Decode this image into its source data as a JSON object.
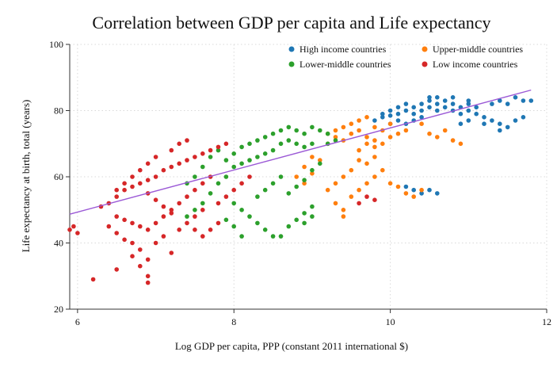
{
  "chart_data": {
    "type": "scatter",
    "title": "Correlation between GDP per capita and Life expectancy",
    "xlabel": "Log GDP per capita, PPP (constant 2011 international $)",
    "ylabel": "Life expectancy at birth, total (years)",
    "xlim": [
      5.9,
      12
    ],
    "ylim": [
      20,
      100
    ],
    "xticks": [
      6,
      8,
      10,
      12
    ],
    "yticks": [
      20,
      40,
      60,
      80,
      100
    ],
    "grid": true,
    "legend_position": "top-right",
    "fit_line": {
      "x": [
        5.9,
        11.8
      ],
      "y": [
        48.7,
        86.2
      ],
      "color": "#9b59d6"
    },
    "series": [
      {
        "name": "High income countries",
        "color": "#1f77b4",
        "points": [
          [
            9.8,
            77
          ],
          [
            9.9,
            78
          ],
          [
            10.0,
            78.5
          ],
          [
            10.0,
            80
          ],
          [
            10.1,
            79
          ],
          [
            10.1,
            81
          ],
          [
            10.2,
            80
          ],
          [
            10.2,
            82
          ],
          [
            10.3,
            79
          ],
          [
            10.3,
            81
          ],
          [
            10.4,
            80
          ],
          [
            10.4,
            82
          ],
          [
            10.5,
            81
          ],
          [
            10.5,
            83
          ],
          [
            10.6,
            80
          ],
          [
            10.6,
            82
          ],
          [
            10.7,
            81
          ],
          [
            10.7,
            83
          ],
          [
            10.8,
            80
          ],
          [
            10.8,
            82
          ],
          [
            10.9,
            81
          ],
          [
            10.9,
            79
          ],
          [
            11.0,
            82
          ],
          [
            11.0,
            80
          ],
          [
            11.1,
            79
          ],
          [
            11.1,
            81
          ],
          [
            11.2,
            78
          ],
          [
            11.3,
            77
          ],
          [
            11.4,
            76
          ],
          [
            11.5,
            82
          ],
          [
            11.6,
            84
          ],
          [
            11.7,
            83
          ],
          [
            11.8,
            83
          ],
          [
            11.7,
            78
          ],
          [
            11.6,
            77
          ],
          [
            11.5,
            75
          ],
          [
            11.4,
            74
          ],
          [
            11.2,
            76
          ],
          [
            11.0,
            77
          ],
          [
            10.9,
            76
          ],
          [
            10.4,
            78
          ],
          [
            10.3,
            77
          ],
          [
            10.2,
            76
          ],
          [
            10.1,
            77
          ],
          [
            10.0,
            76
          ],
          [
            10.2,
            57
          ],
          [
            10.3,
            56
          ],
          [
            10.5,
            56
          ],
          [
            10.6,
            55
          ],
          [
            10.4,
            55
          ],
          [
            9.9,
            79
          ],
          [
            10.5,
            84
          ],
          [
            10.6,
            84
          ],
          [
            10.8,
            84
          ],
          [
            11.0,
            83
          ],
          [
            11.3,
            82
          ],
          [
            11.4,
            83
          ]
        ]
      },
      {
        "name": "Upper-middle countries",
        "color": "#ff7f0e",
        "points": [
          [
            9.2,
            70
          ],
          [
            9.3,
            72
          ],
          [
            9.4,
            71
          ],
          [
            9.5,
            73
          ],
          [
            9.6,
            74
          ],
          [
            9.7,
            72
          ],
          [
            9.8,
            75
          ],
          [
            9.9,
            74
          ],
          [
            10.0,
            76
          ],
          [
            9.5,
            76
          ],
          [
            9.6,
            77
          ],
          [
            9.7,
            78
          ],
          [
            9.4,
            75
          ],
          [
            9.3,
            74
          ],
          [
            9.2,
            73
          ],
          [
            9.6,
            68
          ],
          [
            9.7,
            70
          ],
          [
            9.8,
            71
          ],
          [
            9.9,
            70
          ],
          [
            10.0,
            72
          ],
          [
            9.5,
            62
          ],
          [
            9.4,
            60
          ],
          [
            9.3,
            58
          ],
          [
            9.2,
            56
          ],
          [
            9.3,
            52
          ],
          [
            9.4,
            50
          ],
          [
            9.4,
            48
          ],
          [
            9.5,
            54
          ],
          [
            9.6,
            56
          ],
          [
            9.7,
            58
          ],
          [
            9.8,
            60
          ],
          [
            9.9,
            62
          ],
          [
            10.0,
            58
          ],
          [
            10.1,
            57
          ],
          [
            10.2,
            55
          ],
          [
            10.3,
            54
          ],
          [
            10.4,
            56
          ],
          [
            9.1,
            65
          ],
          [
            9.0,
            66
          ],
          [
            8.9,
            63
          ],
          [
            8.8,
            60
          ],
          [
            9.8,
            69
          ],
          [
            10.5,
            73
          ],
          [
            10.6,
            72
          ],
          [
            10.8,
            71
          ],
          [
            10.9,
            70
          ],
          [
            10.7,
            74
          ],
          [
            10.4,
            76
          ],
          [
            10.2,
            74
          ],
          [
            10.1,
            73
          ],
          [
            9.6,
            65
          ],
          [
            9.7,
            64
          ],
          [
            9.8,
            66
          ],
          [
            9.0,
            61
          ],
          [
            8.9,
            58
          ]
        ]
      },
      {
        "name": "Lower-middle countries",
        "color": "#2ca02c",
        "points": [
          [
            8.2,
            70
          ],
          [
            8.3,
            71
          ],
          [
            8.4,
            72
          ],
          [
            8.5,
            73
          ],
          [
            8.6,
            74
          ],
          [
            8.7,
            75
          ],
          [
            8.8,
            74
          ],
          [
            8.9,
            73
          ],
          [
            9.0,
            75
          ],
          [
            9.1,
            74
          ],
          [
            9.2,
            73
          ],
          [
            8.6,
            70
          ],
          [
            8.7,
            71
          ],
          [
            8.8,
            70
          ],
          [
            8.9,
            69
          ],
          [
            9.0,
            70
          ],
          [
            8.5,
            68
          ],
          [
            8.4,
            67
          ],
          [
            8.3,
            66
          ],
          [
            8.2,
            65
          ],
          [
            8.1,
            64
          ],
          [
            8.0,
            63
          ],
          [
            7.9,
            60
          ],
          [
            7.8,
            58
          ],
          [
            7.7,
            55
          ],
          [
            7.6,
            52
          ],
          [
            7.5,
            50
          ],
          [
            7.4,
            48
          ],
          [
            8.0,
            52
          ],
          [
            8.1,
            50
          ],
          [
            8.2,
            48
          ],
          [
            8.3,
            46
          ],
          [
            8.0,
            45
          ],
          [
            7.9,
            47
          ],
          [
            8.4,
            44
          ],
          [
            8.5,
            42
          ],
          [
            8.6,
            42
          ],
          [
            8.7,
            45
          ],
          [
            8.8,
            47
          ],
          [
            8.9,
            49
          ],
          [
            9.0,
            51
          ],
          [
            8.7,
            55
          ],
          [
            8.8,
            57
          ],
          [
            8.9,
            59
          ],
          [
            9.0,
            62
          ],
          [
            9.1,
            64
          ],
          [
            8.6,
            60
          ],
          [
            8.5,
            58
          ],
          [
            8.4,
            56
          ],
          [
            8.3,
            54
          ],
          [
            7.9,
            65
          ],
          [
            8.0,
            67
          ],
          [
            8.1,
            69
          ],
          [
            7.8,
            68
          ],
          [
            7.7,
            66
          ],
          [
            7.6,
            63
          ],
          [
            7.5,
            60
          ],
          [
            7.4,
            58
          ],
          [
            9.2,
            70
          ],
          [
            9.3,
            71
          ],
          [
            8.9,
            46
          ],
          [
            9.0,
            48
          ],
          [
            8.1,
            42
          ]
        ]
      },
      {
        "name": "Low income countries",
        "color": "#d62728",
        "points": [
          [
            6.3,
            51
          ],
          [
            6.4,
            52
          ],
          [
            6.5,
            54
          ],
          [
            6.6,
            56
          ],
          [
            6.7,
            57
          ],
          [
            6.8,
            58
          ],
          [
            6.9,
            59
          ],
          [
            7.0,
            60
          ],
          [
            7.1,
            62
          ],
          [
            7.2,
            63
          ],
          [
            7.3,
            64
          ],
          [
            7.4,
            65
          ],
          [
            7.5,
            66
          ],
          [
            7.6,
            67
          ],
          [
            7.7,
            68
          ],
          [
            7.8,
            69
          ],
          [
            7.9,
            70
          ],
          [
            6.5,
            48
          ],
          [
            6.6,
            47
          ],
          [
            6.7,
            46
          ],
          [
            6.8,
            45
          ],
          [
            6.9,
            44
          ],
          [
            7.0,
            46
          ],
          [
            7.1,
            48
          ],
          [
            7.2,
            50
          ],
          [
            7.3,
            52
          ],
          [
            7.4,
            54
          ],
          [
            7.5,
            56
          ],
          [
            7.6,
            58
          ],
          [
            7.7,
            60
          ],
          [
            6.4,
            45
          ],
          [
            6.5,
            43
          ],
          [
            6.6,
            41
          ],
          [
            6.7,
            40
          ],
          [
            6.8,
            38
          ],
          [
            6.9,
            35
          ],
          [
            6.8,
            33
          ],
          [
            6.9,
            30
          ],
          [
            6.9,
            28
          ],
          [
            6.2,
            29
          ],
          [
            6.5,
            32
          ],
          [
            6.7,
            36
          ],
          [
            7.2,
            37
          ],
          [
            7.0,
            40
          ],
          [
            7.1,
            42
          ],
          [
            7.3,
            44
          ],
          [
            7.4,
            46
          ],
          [
            7.5,
            48
          ],
          [
            7.6,
            50
          ],
          [
            7.8,
            52
          ],
          [
            7.9,
            54
          ],
          [
            8.0,
            56
          ],
          [
            8.1,
            58
          ],
          [
            8.2,
            60
          ],
          [
            7.2,
            68
          ],
          [
            7.3,
            70
          ],
          [
            7.4,
            71
          ],
          [
            7.0,
            66
          ],
          [
            6.9,
            64
          ],
          [
            6.8,
            62
          ],
          [
            6.7,
            60
          ],
          [
            6.6,
            58
          ],
          [
            6.5,
            56
          ],
          [
            5.9,
            44
          ],
          [
            6.0,
            43
          ],
          [
            5.95,
            45
          ],
          [
            9.6,
            52
          ],
          [
            9.7,
            54
          ],
          [
            9.8,
            53
          ],
          [
            7.5,
            44
          ],
          [
            7.6,
            42
          ],
          [
            7.7,
            44
          ],
          [
            7.8,
            46
          ],
          [
            6.9,
            55
          ],
          [
            7.0,
            53
          ],
          [
            7.1,
            51
          ],
          [
            7.2,
            49
          ]
        ]
      }
    ]
  }
}
